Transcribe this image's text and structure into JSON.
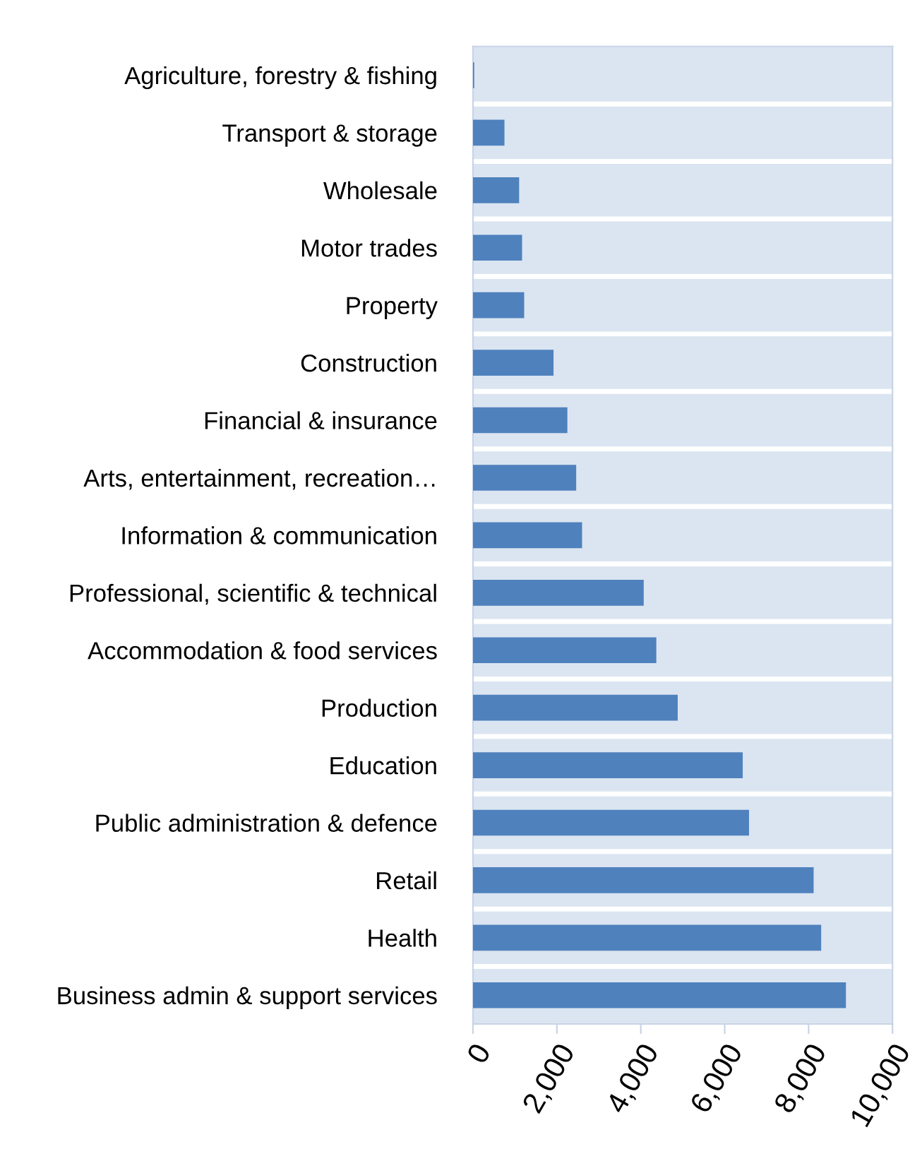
{
  "chart_data": {
    "type": "bar",
    "orientation": "horizontal",
    "categories": [
      "Agriculture, forestry & fishing",
      "Transport & storage",
      "Wholesale",
      "Motor trades",
      "Property",
      "Construction",
      "Financial & insurance",
      "Arts, entertainment, recreation…",
      "Information & communication",
      "Professional, scientific & technical",
      "Accommodation & food services",
      "Production",
      "Education",
      "Public administration & defence",
      "Retail",
      "Health",
      "Business admin & support services"
    ],
    "values": [
      30,
      750,
      1100,
      1170,
      1220,
      1920,
      2250,
      2460,
      2600,
      4070,
      4370,
      4880,
      6430,
      6580,
      8120,
      8300,
      8890
    ],
    "color": "#4f81bd",
    "xlim": [
      0,
      10000
    ],
    "xticks": [
      0,
      {
        "value": 2000,
        "label": "2,000"
      },
      {
        "value": 4000,
        "label": "4,000"
      },
      {
        "value": 6000,
        "label": "6,000"
      },
      {
        "value": 8000,
        "label": "8,000"
      },
      {
        "value": 10000,
        "label": "10,000"
      }
    ],
    "grid": "y"
  }
}
